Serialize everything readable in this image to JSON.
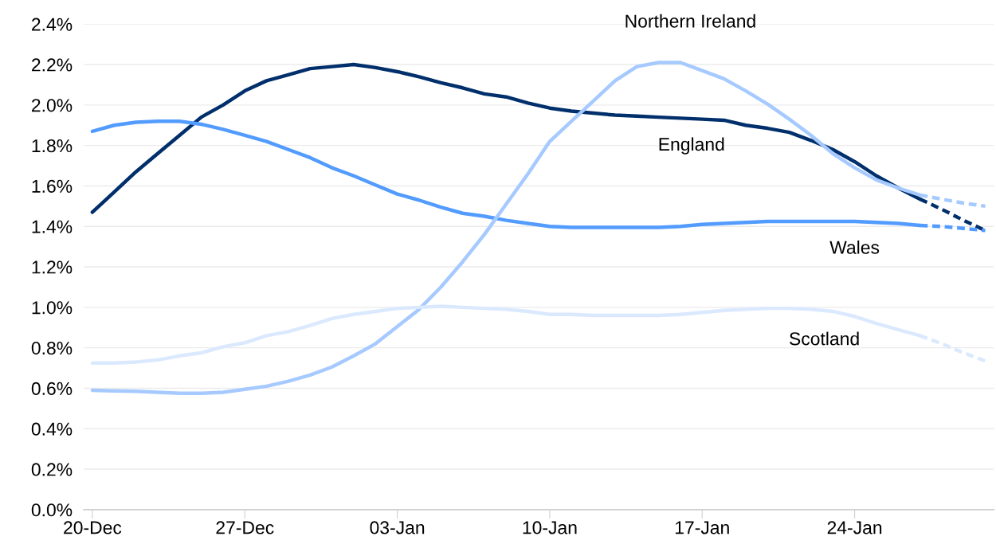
{
  "chart_data": {
    "type": "line",
    "categories": [
      "20-Dec",
      null,
      null,
      null,
      null,
      null,
      null,
      "27-Dec",
      null,
      null,
      null,
      null,
      null,
      null,
      "03-Jan",
      null,
      null,
      null,
      null,
      null,
      null,
      "10-Jan",
      null,
      null,
      null,
      null,
      null,
      null,
      "17-Jan",
      null,
      null,
      null,
      null,
      null,
      null,
      "24-Jan",
      null,
      null,
      null,
      null,
      null,
      null
    ],
    "series": [
      {
        "name": "England",
        "color": "#002f6c",
        "line_style": "solid",
        "values": [
          1.47,
          1.57,
          1.67,
          1.76,
          1.85,
          1.94,
          2.0,
          2.07,
          2.12,
          2.15,
          2.18,
          2.19,
          2.2,
          2.185,
          2.165,
          2.14,
          2.11,
          2.085,
          2.055,
          2.04,
          2.01,
          1.985,
          1.97,
          1.96,
          1.95,
          1.945,
          1.94,
          1.935,
          1.93,
          1.925,
          1.9,
          1.885,
          1.865,
          1.825,
          1.78,
          1.72,
          1.65,
          1.59,
          1.535,
          null,
          null,
          null
        ]
      },
      {
        "name": "Wales",
        "color": "#529bff",
        "line_style": "solid",
        "values": [
          1.87,
          1.9,
          1.915,
          1.92,
          1.92,
          1.905,
          1.88,
          1.85,
          1.82,
          1.78,
          1.74,
          1.69,
          1.65,
          1.605,
          1.56,
          1.53,
          1.495,
          1.465,
          1.45,
          1.43,
          1.415,
          1.4,
          1.395,
          1.395,
          1.395,
          1.395,
          1.395,
          1.4,
          1.41,
          1.415,
          1.42,
          1.425,
          1.425,
          1.425,
          1.425,
          1.425,
          1.42,
          1.415,
          1.405,
          null,
          null,
          null
        ]
      },
      {
        "name": "Northern Ireland",
        "color": "#a6caff",
        "line_style": "solid",
        "values": [
          0.59,
          0.587,
          0.585,
          0.58,
          0.575,
          0.575,
          0.58,
          0.595,
          0.61,
          0.635,
          0.665,
          0.705,
          0.76,
          0.82,
          0.905,
          0.99,
          1.1,
          1.225,
          1.36,
          1.51,
          1.66,
          1.82,
          1.92,
          2.02,
          2.12,
          2.19,
          2.21,
          2.21,
          2.17,
          2.13,
          2.07,
          2.005,
          1.93,
          1.85,
          1.76,
          1.69,
          1.63,
          1.59,
          1.555,
          null,
          null,
          null
        ]
      },
      {
        "name": "Scotland",
        "color": "#dbe9ff",
        "line_style": "solid",
        "values": [
          0.725,
          0.725,
          0.73,
          0.74,
          0.76,
          0.775,
          0.805,
          0.825,
          0.86,
          0.88,
          0.91,
          0.945,
          0.965,
          0.98,
          0.995,
          1.0,
          1.005,
          1.0,
          0.995,
          0.99,
          0.98,
          0.965,
          0.965,
          0.96,
          0.96,
          0.96,
          0.96,
          0.965,
          0.975,
          0.985,
          0.99,
          0.995,
          0.995,
          0.99,
          0.98,
          0.955,
          0.92,
          0.89,
          0.86,
          null,
          null,
          null
        ]
      },
      {
        "color": "#002f6c",
        "line_style": "dashed",
        "values": [
          null,
          null,
          null,
          null,
          null,
          null,
          null,
          null,
          null,
          null,
          null,
          null,
          null,
          null,
          null,
          null,
          null,
          null,
          null,
          null,
          null,
          null,
          null,
          null,
          null,
          null,
          null,
          null,
          null,
          null,
          null,
          null,
          null,
          null,
          null,
          null,
          null,
          null,
          1.535,
          1.485,
          1.43,
          1.38
        ]
      },
      {
        "color": "#529bff",
        "line_style": "dashed",
        "values": [
          null,
          null,
          null,
          null,
          null,
          null,
          null,
          null,
          null,
          null,
          null,
          null,
          null,
          null,
          null,
          null,
          null,
          null,
          null,
          null,
          null,
          null,
          null,
          null,
          null,
          null,
          null,
          null,
          null,
          null,
          null,
          null,
          null,
          null,
          null,
          null,
          null,
          null,
          1.405,
          1.4,
          1.39,
          1.38
        ]
      },
      {
        "color": "#a6caff",
        "line_style": "dashed",
        "values": [
          null,
          null,
          null,
          null,
          null,
          null,
          null,
          null,
          null,
          null,
          null,
          null,
          null,
          null,
          null,
          null,
          null,
          null,
          null,
          null,
          null,
          null,
          null,
          null,
          null,
          null,
          null,
          null,
          null,
          null,
          null,
          null,
          null,
          null,
          null,
          null,
          null,
          null,
          1.555,
          1.535,
          1.515,
          1.5
        ]
      },
      {
        "color": "#dbe9ff",
        "line_style": "dashed",
        "values": [
          null,
          null,
          null,
          null,
          null,
          null,
          null,
          null,
          null,
          null,
          null,
          null,
          null,
          null,
          null,
          null,
          null,
          null,
          null,
          null,
          null,
          null,
          null,
          null,
          null,
          null,
          null,
          null,
          null,
          null,
          null,
          null,
          null,
          null,
          null,
          null,
          null,
          null,
          0.86,
          0.82,
          0.775,
          0.735
        ]
      }
    ],
    "ylim": [
      0,
      2.4
    ],
    "yticks": [
      {
        "value": 0,
        "label": "0.0%"
      },
      {
        "value": 0.2,
        "label": "0.2%"
      },
      {
        "value": 0.4,
        "label": "0.4%"
      },
      {
        "value": 0.6,
        "label": "0.6%"
      },
      {
        "value": 0.8,
        "label": "0.8%"
      },
      {
        "value": 1.0,
        "label": "1.0%"
      },
      {
        "value": 1.2,
        "label": "1.2%"
      },
      {
        "value": 1.4,
        "label": "1.4%"
      },
      {
        "value": 1.6,
        "label": "1.6%"
      },
      {
        "value": 1.8,
        "label": "1.8%"
      },
      {
        "value": 2.0,
        "label": "2.0%"
      },
      {
        "value": 2.2,
        "label": "2.2%"
      },
      {
        "value": 2.4,
        "label": "2.4%"
      }
    ],
    "grid": "y",
    "legend": false,
    "marker": "none"
  }
}
